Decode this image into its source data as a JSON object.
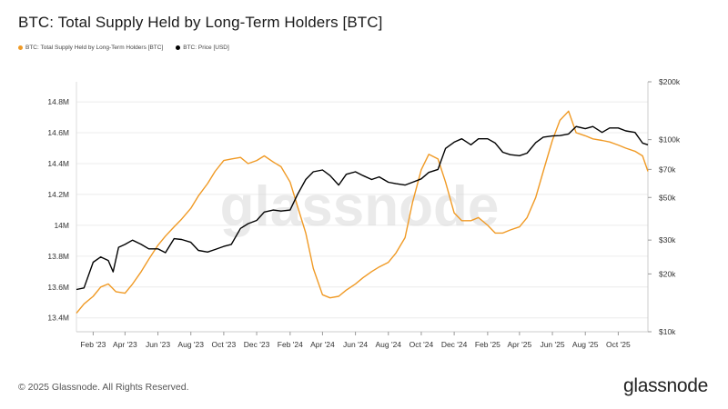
{
  "header": {
    "title": "BTC: Total Supply Held by Long-Term Holders [BTC]"
  },
  "legend": [
    {
      "label": "BTC: Total Supply Held by Long-Term Holders [BTC]",
      "color": "#f09a25"
    },
    {
      "label": "BTC: Price [USD]",
      "color": "#000000"
    }
  ],
  "watermark": "glassnode",
  "footer": {
    "copyright": "© 2025 Glassnode. All Rights Reserved.",
    "brand": "glassnode"
  },
  "chart_data": {
    "type": "line",
    "title": "BTC: Total Supply Held by Long-Term Holders [BTC]",
    "x_ticks": [
      "Feb '23",
      "Apr '23",
      "Jun '23",
      "Aug '23",
      "Oct '23",
      "Dec '23",
      "Feb '24",
      "Apr '24",
      "Jun '24",
      "Aug '24",
      "Oct '24",
      "Dec '24",
      "Feb '25",
      "Apr '25",
      "Jun '25",
      "Aug '25",
      "Oct '25"
    ],
    "x_range": [
      "2023-01-01",
      "2025-11-25"
    ],
    "y_left": {
      "ticks": [
        "13.4M",
        "13.6M",
        "13.8M",
        "14M",
        "14.2M",
        "14.4M",
        "14.6M",
        "14.8M"
      ],
      "tick_values": [
        13.4,
        13.6,
        13.8,
        14.0,
        14.2,
        14.4,
        14.6,
        14.8
      ],
      "range": [
        13.31,
        14.93
      ],
      "unit": "M BTC"
    },
    "y_right": {
      "scale": "log",
      "ticks": [
        "$10k",
        "$20k",
        "$30k",
        "$50k",
        "$70k",
        "$100k",
        "$200k"
      ],
      "tick_values": [
        10000,
        20000,
        30000,
        50000,
        70000,
        100000,
        200000
      ],
      "range": [
        10000,
        200000
      ]
    },
    "grid": true,
    "legend_position": "top-left",
    "series": [
      {
        "name": "BTC: Total Supply Held by Long-Term Holders [BTC]",
        "axis": "left",
        "color": "#f09a25",
        "x": [
          "2023-01-01",
          "2023-01-15",
          "2023-02-01",
          "2023-02-15",
          "2023-03-01",
          "2023-03-15",
          "2023-04-01",
          "2023-04-15",
          "2023-05-01",
          "2023-05-15",
          "2023-06-01",
          "2023-06-15",
          "2023-07-01",
          "2023-07-15",
          "2023-08-01",
          "2023-08-15",
          "2023-09-01",
          "2023-09-15",
          "2023-10-01",
          "2023-10-15",
          "2023-11-01",
          "2023-11-15",
          "2023-12-01",
          "2023-12-15",
          "2024-01-01",
          "2024-01-15",
          "2024-02-01",
          "2024-02-15",
          "2024-03-01",
          "2024-03-15",
          "2024-04-01",
          "2024-04-15",
          "2024-05-01",
          "2024-05-15",
          "2024-06-01",
          "2024-06-15",
          "2024-07-01",
          "2024-07-15",
          "2024-08-01",
          "2024-08-15",
          "2024-09-01",
          "2024-09-15",
          "2024-10-01",
          "2024-10-15",
          "2024-11-01",
          "2024-11-15",
          "2024-12-01",
          "2024-12-15",
          "2025-01-01",
          "2025-01-15",
          "2025-02-01",
          "2025-02-15",
          "2025-03-01",
          "2025-03-15",
          "2025-04-01",
          "2025-04-15",
          "2025-05-01",
          "2025-05-15",
          "2025-06-01",
          "2025-06-15",
          "2025-07-01",
          "2025-07-15",
          "2025-08-01",
          "2025-08-15",
          "2025-09-01",
          "2025-09-15",
          "2025-10-01",
          "2025-10-15",
          "2025-11-01",
          "2025-11-15",
          "2025-11-25"
        ],
        "y": [
          13.43,
          13.49,
          13.54,
          13.6,
          13.62,
          13.57,
          13.56,
          13.62,
          13.7,
          13.78,
          13.87,
          13.93,
          13.99,
          14.04,
          14.11,
          14.19,
          14.27,
          14.35,
          14.42,
          14.43,
          14.44,
          14.4,
          14.42,
          14.45,
          14.41,
          14.38,
          14.28,
          14.12,
          13.95,
          13.72,
          13.55,
          13.53,
          13.54,
          13.58,
          13.62,
          13.66,
          13.7,
          13.73,
          13.76,
          13.82,
          13.92,
          14.15,
          14.36,
          14.46,
          14.43,
          14.28,
          14.08,
          14.03,
          14.03,
          14.05,
          14.0,
          13.95,
          13.95,
          13.97,
          13.99,
          14.05,
          14.18,
          14.35,
          14.55,
          14.68,
          14.74,
          14.6,
          14.58,
          14.56,
          14.55,
          14.54,
          14.52,
          14.5,
          14.48,
          14.45,
          14.35
        ]
      },
      {
        "name": "BTC: Price [USD]",
        "axis": "right",
        "color": "#000000",
        "x": [
          "2023-01-01",
          "2023-01-15",
          "2023-02-01",
          "2023-02-15",
          "2023-03-01",
          "2023-03-10",
          "2023-03-20",
          "2023-04-01",
          "2023-04-15",
          "2023-05-01",
          "2023-05-15",
          "2023-06-01",
          "2023-06-15",
          "2023-07-01",
          "2023-07-15",
          "2023-08-01",
          "2023-08-15",
          "2023-09-01",
          "2023-09-15",
          "2023-10-01",
          "2023-10-15",
          "2023-11-01",
          "2023-11-15",
          "2023-12-01",
          "2023-12-15",
          "2024-01-01",
          "2024-01-15",
          "2024-02-01",
          "2024-02-15",
          "2024-03-01",
          "2024-03-15",
          "2024-04-01",
          "2024-04-15",
          "2024-05-01",
          "2024-05-15",
          "2024-06-01",
          "2024-06-15",
          "2024-07-01",
          "2024-07-15",
          "2024-08-01",
          "2024-08-15",
          "2024-09-01",
          "2024-09-15",
          "2024-10-01",
          "2024-10-15",
          "2024-11-01",
          "2024-11-15",
          "2024-12-01",
          "2024-12-15",
          "2025-01-01",
          "2025-01-15",
          "2025-02-01",
          "2025-02-15",
          "2025-03-01",
          "2025-03-15",
          "2025-04-01",
          "2025-04-15",
          "2025-05-01",
          "2025-05-15",
          "2025-06-01",
          "2025-06-15",
          "2025-07-01",
          "2025-07-15",
          "2025-08-01",
          "2025-08-15",
          "2025-09-01",
          "2025-09-15",
          "2025-10-01",
          "2025-10-15",
          "2025-11-01",
          "2025-11-15",
          "2025-11-25"
        ],
        "y": [
          16600,
          16900,
          23000,
          24500,
          23500,
          20500,
          27500,
          28500,
          30000,
          28500,
          27000,
          27000,
          25800,
          30500,
          30200,
          29200,
          26500,
          26000,
          26800,
          27800,
          28500,
          34500,
          36500,
          38000,
          42000,
          43000,
          42500,
          43000,
          52000,
          62000,
          68000,
          69500,
          65000,
          58000,
          66000,
          68000,
          65000,
          62000,
          64000,
          60000,
          59000,
          58000,
          60000,
          62500,
          67500,
          70000,
          90000,
          97000,
          101000,
          94000,
          101000,
          101000,
          96000,
          86000,
          83500,
          82500,
          85000,
          96500,
          103000,
          104500,
          105000,
          107000,
          117000,
          114000,
          117000,
          109000,
          115000,
          115000,
          111000,
          109000,
          96000,
          94000
        ]
      }
    ]
  }
}
